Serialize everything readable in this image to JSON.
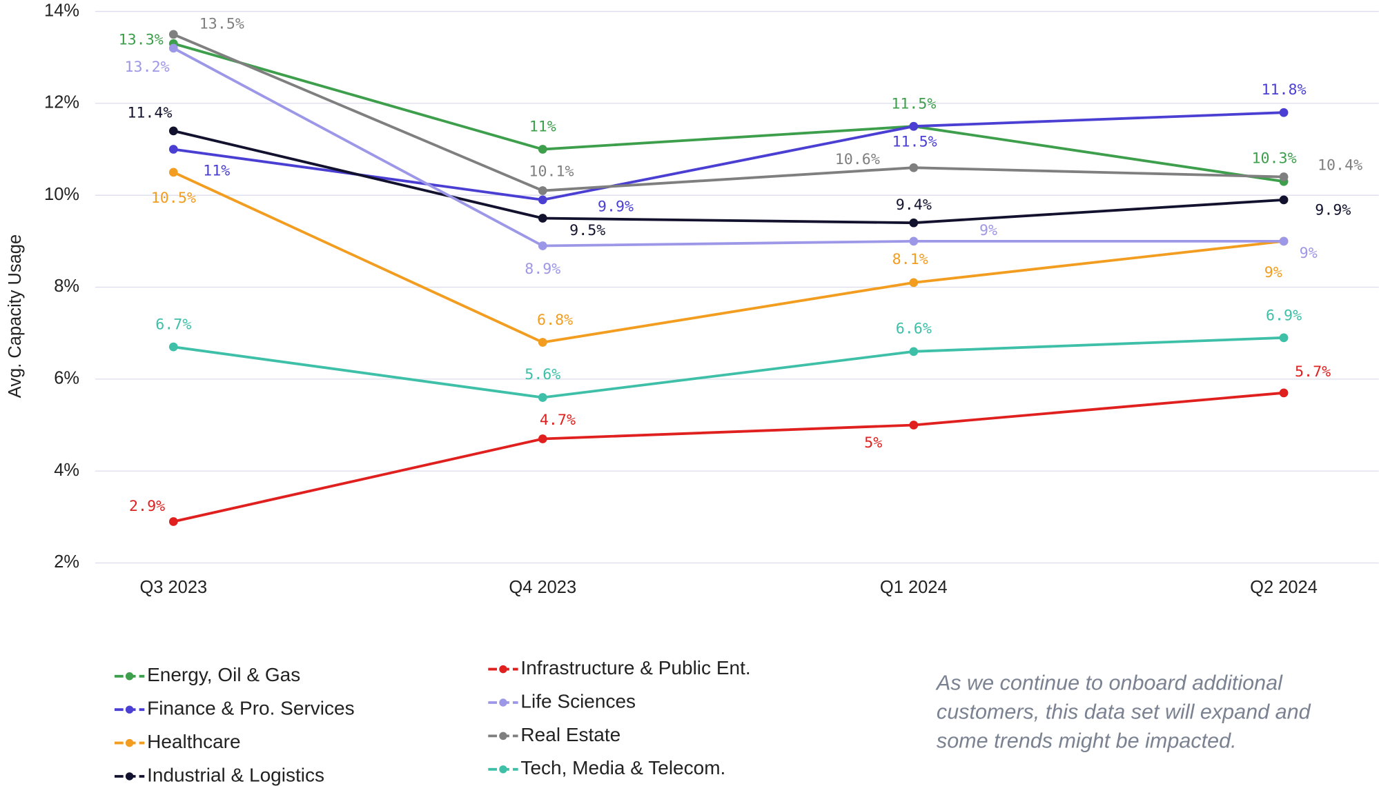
{
  "chart_data": {
    "type": "line",
    "y_label": "Avg. Capacity Usage",
    "categories": [
      "Q3 2023",
      "Q4 2023",
      "Q1 2024",
      "Q2 2024"
    ],
    "ylim": [
      2,
      14
    ],
    "yticks": [
      {
        "value": 2,
        "label": "2%"
      },
      {
        "value": 4,
        "label": "4%"
      },
      {
        "value": 6,
        "label": "6%"
      },
      {
        "value": 8,
        "label": "8%"
      },
      {
        "value": 10,
        "label": "10%"
      },
      {
        "value": 12,
        "label": "12%"
      },
      {
        "value": 14,
        "label": "14%"
      }
    ],
    "grid": true,
    "series": [
      {
        "name": "Energy, Oil & Gas",
        "color": "#3d9e4c",
        "values": [
          13.3,
          11,
          11.5,
          10.3
        ],
        "value_labels": [
          "13.3%",
          "11%",
          "11.5%",
          "10.3%"
        ]
      },
      {
        "name": "Finance & Pro. Services",
        "color": "#4a3fd2",
        "values": [
          11,
          9.9,
          11.5,
          11.8
        ],
        "value_labels": [
          "11%",
          "9.9%",
          "11.5%",
          "11.8%"
        ]
      },
      {
        "name": "Healthcare",
        "color": "#f29d1f",
        "values": [
          10.5,
          6.8,
          8.1,
          9
        ],
        "value_labels": [
          "10.5%",
          "6.8%",
          "8.1%",
          "9%"
        ]
      },
      {
        "name": "Industrial & Logistics",
        "color": "#12122e",
        "values": [
          11.4,
          9.5,
          9.4,
          9.9
        ],
        "value_labels": [
          "11.4%",
          "9.5%",
          "9.4%",
          "9.9%"
        ]
      },
      {
        "name": "Infrastructure & Public Ent.",
        "color": "#e0201f",
        "values": [
          2.9,
          4.7,
          5,
          5.7
        ],
        "value_labels": [
          "2.9%",
          "4.7%",
          "5%",
          "5.7%"
        ]
      },
      {
        "name": "Life Sciences",
        "color": "#9d97e8",
        "values": [
          13.2,
          8.9,
          9,
          9
        ],
        "value_labels": [
          "13.2%",
          "8.9%",
          "9%",
          "9%"
        ]
      },
      {
        "name": "Real Estate",
        "color": "#7f7f7f",
        "values": [
          13.5,
          10.1,
          10.6,
          10.4
        ],
        "value_labels": [
          "13.5%",
          "10.1%",
          "10.6%",
          "10.4%"
        ]
      },
      {
        "name": "Tech, Media & Telecom.",
        "color": "#3dbfa8",
        "values": [
          6.7,
          5.6,
          6.6,
          6.9
        ],
        "value_labels": [
          "6.7%",
          "5.6%",
          "6.6%",
          "6.9%"
        ]
      }
    ],
    "note": [
      "As we continue to onboard additional",
      "customers, this data set will expand and",
      "some trends might be impacted."
    ]
  }
}
